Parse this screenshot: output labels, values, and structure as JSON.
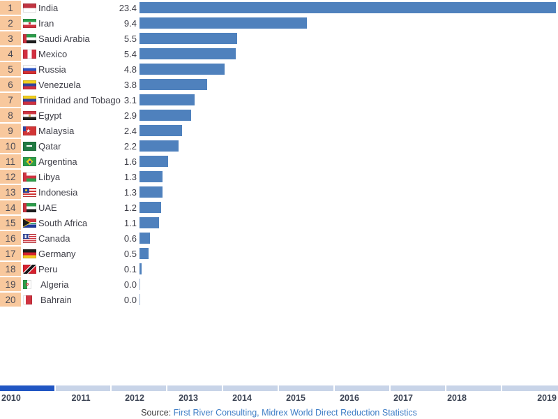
{
  "chart_data": {
    "type": "bar",
    "orientation": "horizontal",
    "x_max": 23.4,
    "categories": [
      "India",
      "Iran",
      "Saudi Arabia",
      "Mexico",
      "Russia",
      "Venezuela",
      "Trinidad and Tobago",
      "Egypt",
      "Malaysia",
      "Qatar",
      "Argentina",
      "Libya",
      "Indonesia",
      "UAE",
      "South Africa",
      "Canada",
      "Germany",
      "Peru",
      "Algeria",
      "Bahrain"
    ],
    "values": [
      23.4,
      9.4,
      5.5,
      5.4,
      4.8,
      3.8,
      3.1,
      2.9,
      2.4,
      2.2,
      1.6,
      1.3,
      1.3,
      1.2,
      1.1,
      0.6,
      0.5,
      0.1,
      0.0,
      0.0
    ],
    "rows": [
      {
        "rank": 1,
        "country": "India",
        "value": 23.4,
        "flag": "india"
      },
      {
        "rank": 2,
        "country": "Iran",
        "value": 9.4,
        "flag": "iran"
      },
      {
        "rank": 3,
        "country": "Saudi Arabia",
        "value": 5.5,
        "flag": "uae"
      },
      {
        "rank": 4,
        "country": "Mexico",
        "value": 5.4,
        "flag": "peru"
      },
      {
        "rank": 5,
        "country": "Russia",
        "value": 4.8,
        "flag": "russia"
      },
      {
        "rank": 6,
        "country": "Venezuela",
        "value": 3.8,
        "flag": "venezuela"
      },
      {
        "rank": 7,
        "country": "Trinidad and Tobago",
        "value": 3.1,
        "flag": "venezuela"
      },
      {
        "rank": 8,
        "country": "Egypt",
        "value": 2.9,
        "flag": "egypt"
      },
      {
        "rank": 9,
        "country": "Malaysia",
        "value": 2.4,
        "flag": "myanmar"
      },
      {
        "rank": 10,
        "country": "Qatar",
        "value": 2.2,
        "flag": "saudi"
      },
      {
        "rank": 11,
        "country": "Argentina",
        "value": 1.6,
        "flag": "brazil"
      },
      {
        "rank": 12,
        "country": "Libya",
        "value": 1.3,
        "flag": "oman"
      },
      {
        "rank": 13,
        "country": "Indonesia",
        "value": 1.3,
        "flag": "malaysia"
      },
      {
        "rank": 14,
        "country": "UAE",
        "value": 1.2,
        "flag": "uae"
      },
      {
        "rank": 15,
        "country": "South Africa",
        "value": 1.1,
        "flag": "southafrica"
      },
      {
        "rank": 16,
        "country": "Canada",
        "value": 0.6,
        "flag": "usa"
      },
      {
        "rank": 17,
        "country": "Germany",
        "value": 0.5,
        "flag": "germany"
      },
      {
        "rank": 18,
        "country": "Peru",
        "value": 0.1,
        "flag": "tt"
      },
      {
        "rank": 19,
        "country": "Algeria",
        "value": 0.0,
        "flag": "algeria"
      },
      {
        "rank": 20,
        "country": "Bahrain",
        "value": 0.0,
        "flag": "bahrain"
      }
    ],
    "timeline": {
      "years": [
        "2010",
        "2011",
        "2012",
        "2013",
        "2014",
        "2015",
        "2016",
        "2017",
        "2018",
        "2019"
      ],
      "active_year": "2010"
    },
    "legend": null,
    "grid": false
  },
  "source": {
    "label": "Source: ",
    "links": [
      "First River Consulting",
      "Midrex World Direct Reduction Statistics"
    ],
    "separator": ", "
  },
  "colors": {
    "bar": "#4f81bd",
    "zero_line": "#9db4d4",
    "rank_bg": "#f8c89d",
    "timeline_active": "#2156c3",
    "timeline_inactive": "#c8d4e8",
    "link": "#3f7ec6"
  }
}
